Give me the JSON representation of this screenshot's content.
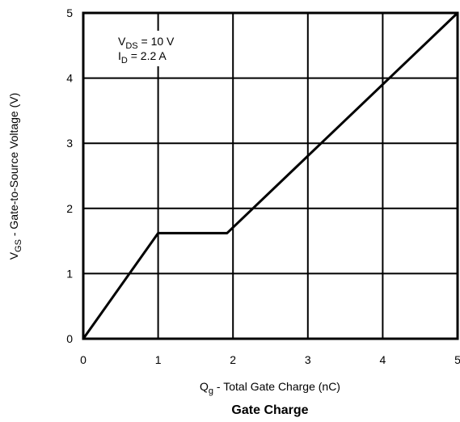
{
  "chart_data": {
    "type": "line",
    "title": "Gate Charge",
    "xlabel": {
      "main": "Q",
      "sub": "g",
      "rest": " - Total Gate Charge (nC)"
    },
    "ylabel": {
      "main": "V",
      "sub": "GS",
      "rest": " - Gate-to-Source Voltage (V)"
    },
    "xlim": [
      0,
      5
    ],
    "ylim": [
      0,
      5
    ],
    "x_ticks": [
      "0",
      "1",
      "2",
      "3",
      "4",
      "5"
    ],
    "y_ticks": [
      "0",
      "1",
      "2",
      "3",
      "4",
      "5"
    ],
    "grid": true,
    "annotations": [
      {
        "main": "V",
        "sub": "DS",
        "rest": " = 10 V"
      },
      {
        "main": "I",
        "sub": "D",
        "rest": " =  2.2 A"
      }
    ],
    "series": [
      {
        "x": [
          0,
          1,
          1.92,
          5
        ],
        "y": [
          0,
          1.62,
          1.62,
          5
        ]
      }
    ]
  }
}
